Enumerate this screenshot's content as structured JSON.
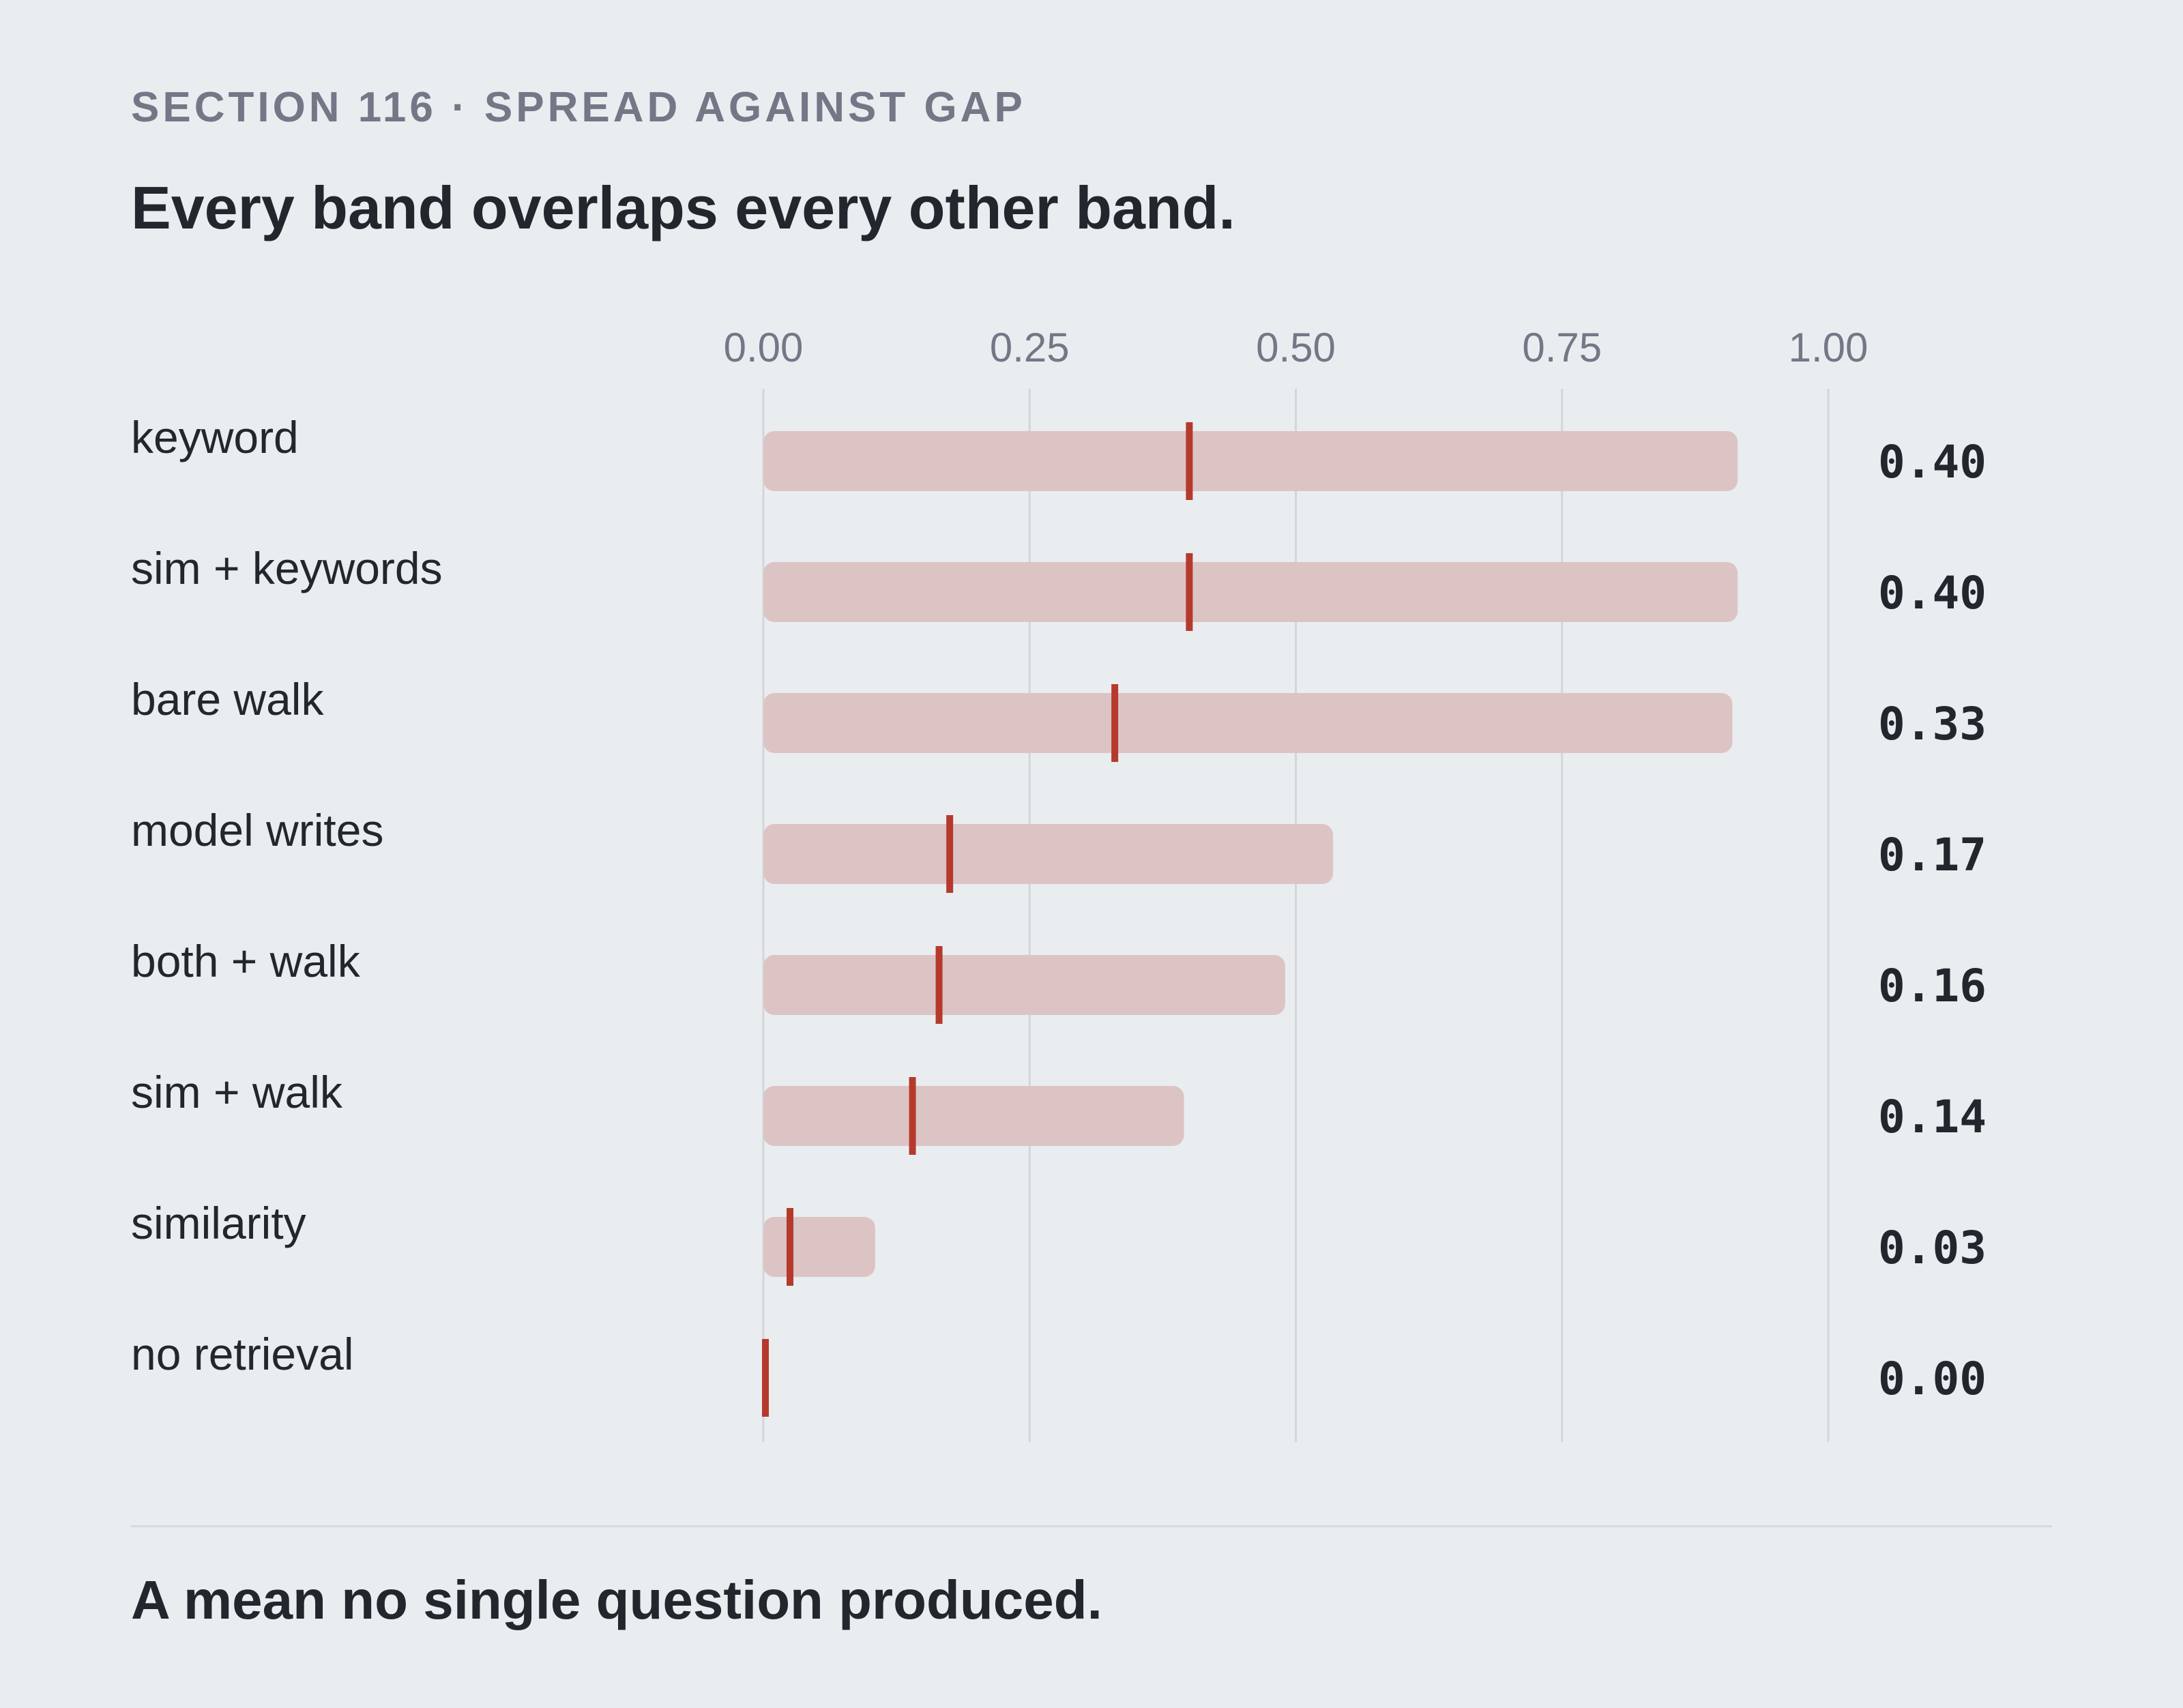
{
  "header": {
    "eyebrow": "SECTION 116 · SPREAD AGAINST GAP",
    "title": "Every band overlaps every other band."
  },
  "footer": {
    "note": "A mean no single question produced."
  },
  "colors": {
    "band": "#dcc4c5",
    "marker": "#b53a2c",
    "grid": "#d3d6d9"
  },
  "chart_data": {
    "type": "range-dot",
    "xlim": [
      0,
      1
    ],
    "ticks": [
      "0.00",
      "0.25",
      "0.50",
      "0.75",
      "1.00"
    ],
    "tick_values": [
      0,
      0.25,
      0.5,
      0.75,
      1.0
    ],
    "grid": true,
    "rows": [
      {
        "label": "keyword",
        "low": 0.0,
        "high": 0.915,
        "mean": 0.4,
        "value_label": "0.40"
      },
      {
        "label": "sim + keywords",
        "low": 0.0,
        "high": 0.915,
        "mean": 0.4,
        "value_label": "0.40"
      },
      {
        "label": "bare walk",
        "low": 0.0,
        "high": 0.91,
        "mean": 0.33,
        "value_label": "0.33"
      },
      {
        "label": "model writes",
        "low": 0.0,
        "high": 0.535,
        "mean": 0.175,
        "value_label": "0.17"
      },
      {
        "label": "both + walk",
        "low": 0.0,
        "high": 0.49,
        "mean": 0.165,
        "value_label": "0.16"
      },
      {
        "label": "sim + walk",
        "low": 0.0,
        "high": 0.395,
        "mean": 0.14,
        "value_label": "0.14"
      },
      {
        "label": "similarity",
        "low": 0.0,
        "high": 0.105,
        "mean": 0.025,
        "value_label": "0.03"
      },
      {
        "label": "no retrieval",
        "low": 0.0,
        "high": 0.0,
        "mean": 0.0,
        "value_label": "0.00"
      }
    ]
  }
}
